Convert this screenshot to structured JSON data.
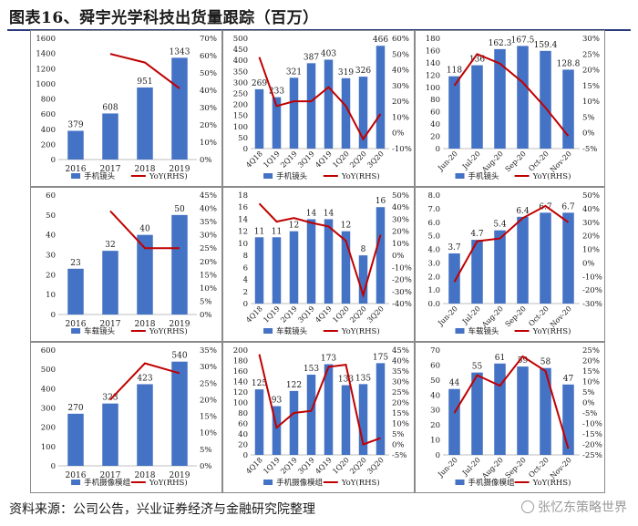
{
  "title": "图表16、舜宇光学科技出货量跟踪（百万）",
  "source": "资料来源：公司公告，兴业证券经济与金融研究院整理",
  "watermark": "张忆东策略世界",
  "colors": {
    "bar": "#4472c4",
    "line": "#c00000",
    "frame": "#8a8a8a",
    "text": "#1a1a1a"
  },
  "chart_data": [
    {
      "type": "bar",
      "legend_bar": "手机镜头",
      "legend_line": "YoY(RHS)",
      "categories": [
        "2016",
        "2017",
        "2018",
        "2019"
      ],
      "bars": [
        379,
        608,
        951,
        1343
      ],
      "bar_labels": [
        "379",
        "608",
        "951",
        "1343"
      ],
      "yoy": [
        null,
        0.61,
        0.56,
        0.41
      ],
      "ylim": [
        0,
        1600
      ],
      "yticks": [
        0,
        200,
        400,
        600,
        800,
        1000,
        1200,
        1400,
        1600
      ],
      "rlim": [
        0,
        0.7
      ],
      "rticks": [
        "0%",
        "10%",
        "20%",
        "30%",
        "40%",
        "50%",
        "60%",
        "70%"
      ],
      "label_rotate": false
    },
    {
      "type": "bar",
      "legend_bar": "手机镜头",
      "legend_line": "YoY(RHS)",
      "categories": [
        "4Q18",
        "1Q19",
        "2Q19",
        "3Q19",
        "4Q19",
        "1Q20",
        "2Q20",
        "3Q20"
      ],
      "bars": [
        269,
        233,
        321,
        387,
        403,
        319,
        326,
        466
      ],
      "bar_labels": [
        "269",
        "233",
        "321",
        "387",
        "403",
        "319",
        "326",
        "466"
      ],
      "yoy": [
        0.48,
        0.17,
        0.2,
        0.2,
        0.29,
        0.17,
        -0.04,
        0.12
      ],
      "ylim": [
        0,
        500
      ],
      "yticks": [
        0,
        50,
        100,
        150,
        200,
        250,
        300,
        350,
        400,
        450,
        500
      ],
      "rlim": [
        -0.1,
        0.6
      ],
      "rticks": [
        "-10%",
        "0%",
        "10%",
        "20%",
        "30%",
        "40%",
        "50%",
        "60%"
      ],
      "label_rotate": true
    },
    {
      "type": "bar",
      "legend_bar": "手机镜头",
      "legend_line": "YoY(RHS)",
      "categories": [
        "Jun-20",
        "Jul-20",
        "Aug-20",
        "Sep-20",
        "Oct-20",
        "Nov-20"
      ],
      "bars": [
        118,
        136,
        162.3,
        167.5,
        159.4,
        128.8
      ],
      "bar_labels": [
        "118",
        "136",
        "162.3",
        "167.5",
        "159.4",
        "128.8"
      ],
      "yoy": [
        0.15,
        0.25,
        0.22,
        0.16,
        0.08,
        -0.01
      ],
      "ylim": [
        0,
        180
      ],
      "yticks": [
        0,
        20,
        40,
        60,
        80,
        100,
        120,
        140,
        160,
        180
      ],
      "rlim": [
        -0.05,
        0.3
      ],
      "rticks": [
        "-5%",
        "0%",
        "5%",
        "10%",
        "15%",
        "20%",
        "25%",
        "30%"
      ],
      "label_rotate": true
    },
    {
      "type": "bar",
      "legend_bar": "车载镜头",
      "legend_line": "YoY(RHS)",
      "categories": [
        "2016",
        "2017",
        "2018",
        "2019"
      ],
      "bars": [
        23,
        32,
        40,
        50
      ],
      "bar_labels": [
        "23",
        "32",
        "40",
        "50"
      ],
      "yoy": [
        null,
        0.39,
        0.25,
        0.25
      ],
      "ylim": [
        0,
        60
      ],
      "yticks": [
        0,
        10,
        20,
        30,
        40,
        50,
        60
      ],
      "rlim": [
        0,
        0.45
      ],
      "rticks": [
        "0%",
        "5%",
        "10%",
        "15%",
        "20%",
        "25%",
        "30%",
        "35%",
        "40%",
        "45%"
      ],
      "label_rotate": false
    },
    {
      "type": "bar",
      "legend_bar": "车载镜头",
      "legend_line": "YoY(RHS)",
      "categories": [
        "4Q18",
        "1Q19",
        "2Q19",
        "3Q19",
        "4Q19",
        "1Q20",
        "2Q20",
        "3Q20"
      ],
      "bars": [
        11,
        11,
        12,
        14,
        14,
        12,
        8,
        16
      ],
      "bar_labels": [
        "11",
        "11",
        "12",
        "14",
        "14",
        "12",
        "8",
        "16"
      ],
      "yoy": [
        0.43,
        0.28,
        0.31,
        0.27,
        0.24,
        0.12,
        -0.33,
        0.17
      ],
      "ylim": [
        0,
        18
      ],
      "yticks": [
        0,
        2,
        4,
        6,
        8,
        10,
        12,
        14,
        16,
        18
      ],
      "rlim": [
        -0.4,
        0.5
      ],
      "rticks": [
        "-40%",
        "-30%",
        "-20%",
        "-10%",
        "0%",
        "10%",
        "20%",
        "30%",
        "40%",
        "50%"
      ],
      "label_rotate": true
    },
    {
      "type": "bar",
      "legend_bar": "车载镜头",
      "legend_line": "YoY(RHS)",
      "categories": [
        "Jun-20",
        "Jul-20",
        "Aug-20",
        "Sep-20",
        "Oct-20",
        "Nov-20"
      ],
      "bars": [
        3.7,
        4.7,
        5.4,
        6.4,
        6.7,
        6.7
      ],
      "bar_labels": [
        "3.7",
        "4.7",
        "5.4",
        "6.4",
        "6.7",
        "6.7"
      ],
      "yoy": [
        -0.14,
        0.16,
        0.18,
        0.33,
        0.42,
        0.3
      ],
      "ylim": [
        0,
        8
      ],
      "yticks": [
        "0.0",
        "1.0",
        "2.0",
        "3.0",
        "4.0",
        "5.0",
        "6.0",
        "7.0",
        "8.0"
      ],
      "rlim": [
        -0.3,
        0.5
      ],
      "rticks": [
        "-30%",
        "-20%",
        "-10%",
        "0%",
        "10%",
        "20%",
        "30%",
        "40%",
        "50%"
      ],
      "label_rotate": true
    },
    {
      "type": "bar",
      "legend_bar": "手机摄像模组",
      "legend_line": "YoY(RHS)",
      "categories": [
        "2016",
        "2017",
        "2018",
        "2019"
      ],
      "bars": [
        270,
        323,
        423,
        540
      ],
      "bar_labels": [
        "270",
        "323",
        "423",
        "540"
      ],
      "yoy": [
        null,
        0.2,
        0.31,
        0.28
      ],
      "ylim": [
        0,
        600
      ],
      "yticks": [
        0,
        100,
        200,
        300,
        400,
        500,
        600
      ],
      "rlim": [
        0,
        0.35
      ],
      "rticks": [
        "0%",
        "5%",
        "10%",
        "15%",
        "20%",
        "25%",
        "30%",
        "35%"
      ],
      "label_rotate": false
    },
    {
      "type": "bar",
      "legend_bar": "手机摄像模组",
      "legend_line": "YoY(RHS)",
      "categories": [
        "4Q18",
        "1Q19",
        "2Q19",
        "3Q19",
        "4Q19",
        "1Q20",
        "2Q20",
        "3Q20"
      ],
      "bars": [
        125,
        93,
        122,
        153,
        173,
        133,
        135,
        175
      ],
      "bar_labels": [
        "125",
        "93",
        "122",
        "153",
        "173",
        "133",
        "135",
        "175"
      ],
      "yoy": [
        0.43,
        0.08,
        0.15,
        0.16,
        0.37,
        0.38,
        0.0,
        0.03
      ],
      "ylim": [
        0,
        200
      ],
      "yticks": [
        0,
        20,
        40,
        60,
        80,
        100,
        120,
        140,
        160,
        180,
        200
      ],
      "rlim": [
        -0.05,
        0.45
      ],
      "rticks": [
        "-5%",
        "0%",
        "5%",
        "10%",
        "15%",
        "20%",
        "25%",
        "30%",
        "35%",
        "40%",
        "45%"
      ],
      "label_rotate": true
    },
    {
      "type": "bar",
      "legend_bar": "手机摄像模组",
      "legend_line": "YoY(RHS)",
      "categories": [
        "Jun-20",
        "Jul-20",
        "Aug-20",
        "Sep-20",
        "Oct-20",
        "Nov-20"
      ],
      "bars": [
        44,
        55,
        61,
        59,
        58,
        47
      ],
      "bar_labels": [
        "44",
        "55",
        "61",
        "59",
        "58",
        "47"
      ],
      "yoy": [
        -0.05,
        0.13,
        0.08,
        0.22,
        0.15,
        -0.22
      ],
      "ylim": [
        0,
        70
      ],
      "yticks": [
        0,
        10,
        20,
        30,
        40,
        50,
        60,
        70
      ],
      "rlim": [
        -0.25,
        0.25
      ],
      "rticks": [
        "-25%",
        "-20%",
        "-15%",
        "-10%",
        "-5%",
        "0%",
        "5%",
        "10%",
        "15%",
        "20%",
        "25%"
      ],
      "label_rotate": true
    }
  ]
}
